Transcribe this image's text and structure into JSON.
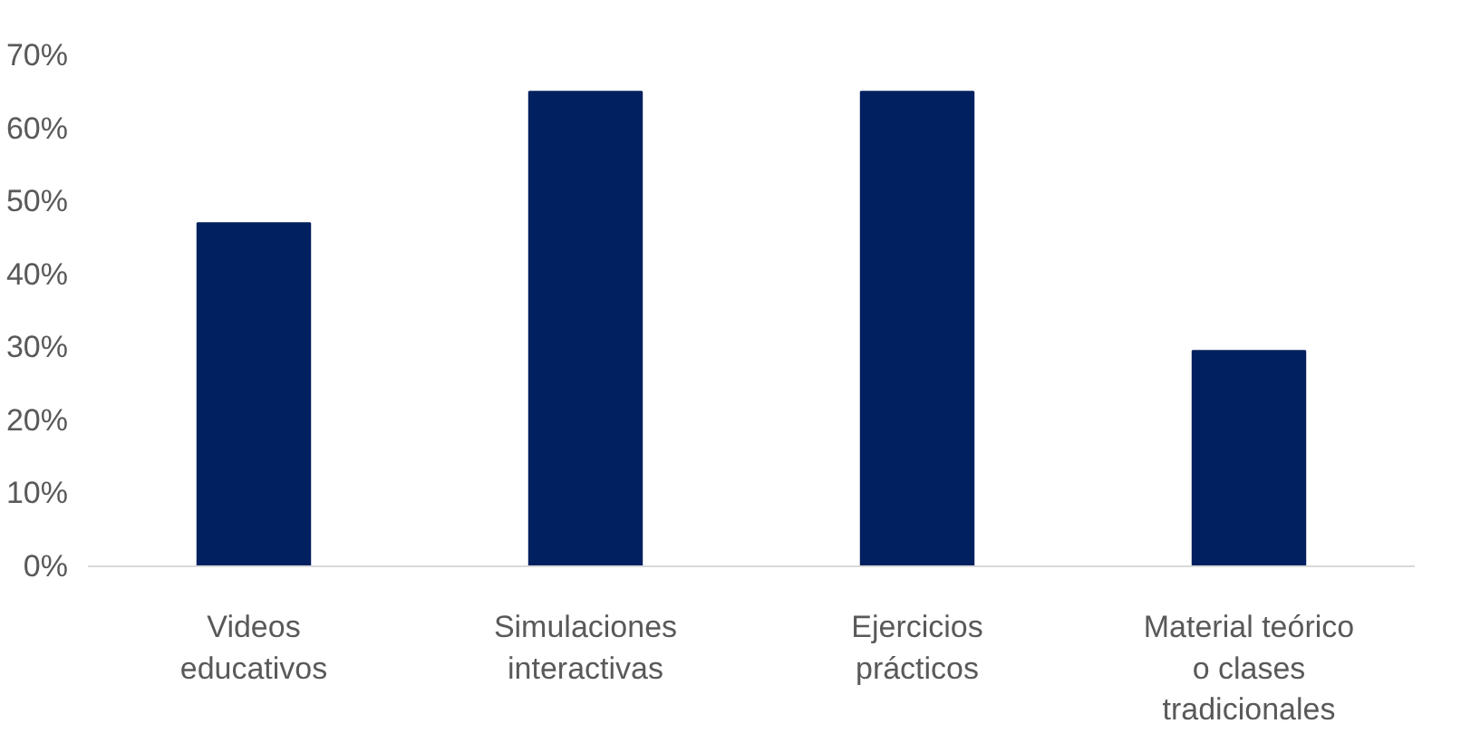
{
  "chart_data": {
    "type": "bar",
    "categories": [
      "Videos educativos",
      "Simulaciones interactivas",
      "Ejercicios prácticos",
      "Material teórico o clases tradicionales"
    ],
    "values": [
      47,
      65,
      65,
      29.5
    ],
    "color": "#002060",
    "ylim": [
      0,
      70
    ],
    "yticks": [
      {
        "value": 0,
        "label": "0%"
      },
      {
        "value": 10,
        "label": "10%"
      },
      {
        "value": 20,
        "label": "20%"
      },
      {
        "value": 30,
        "label": "30%"
      },
      {
        "value": 40,
        "label": "40%"
      },
      {
        "value": 50,
        "label": "50%"
      },
      {
        "value": 60,
        "label": "60%"
      },
      {
        "value": 70,
        "label": "70%"
      }
    ],
    "grid": false
  }
}
